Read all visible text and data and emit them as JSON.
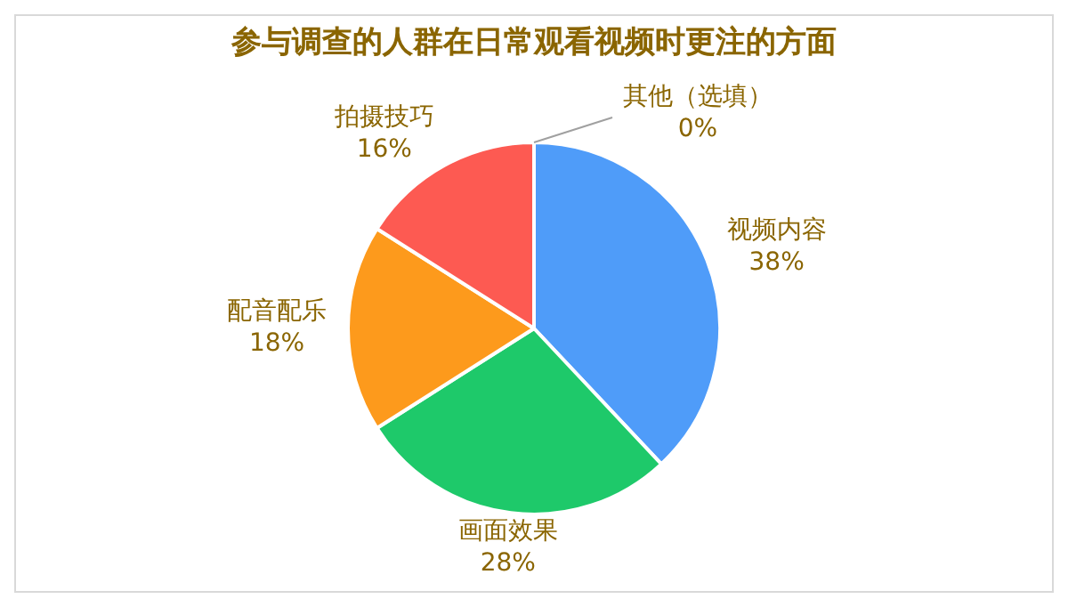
{
  "chart_data": {
    "type": "pie",
    "title": "参与调查的人群在日常观看视频时更注的方面",
    "categories": [
      "视频内容",
      "画面效果",
      "配音配乐",
      "拍摄技巧",
      "其他（选填）"
    ],
    "values": [
      38,
      28,
      18,
      16,
      0
    ],
    "colors": [
      "#4f9cf9",
      "#1ec96a",
      "#fd9a1c",
      "#fd5a52",
      "#b0b0b0"
    ],
    "value_labels": [
      "38%",
      "28%",
      "18%",
      "16%",
      "0%"
    ],
    "legend": false
  }
}
